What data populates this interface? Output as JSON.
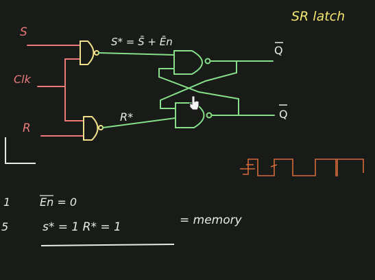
{
  "title": "SR latch",
  "inputs": {
    "s": "S",
    "clk": "Clk",
    "r": "R"
  },
  "outputs": {
    "q": "Q",
    "q_bar": "Q"
  },
  "signals": {
    "s_star": "S* = S̄ + Ēn",
    "r_star": "R*"
  },
  "notes": {
    "line1_num": "1",
    "line1_eq": "En = 0",
    "line2_num": "5",
    "line2_eq": "s* = 1   R* = 1",
    "line2_result": "= memory"
  },
  "colors": {
    "background": "#181b18",
    "input_wire": "#e97a78",
    "gate_input": "#f0e08a",
    "output_wire": "#86e08a",
    "title": "#f2e66e",
    "chalk": "#e8ece6",
    "clock_wave": "#d66b3c"
  }
}
